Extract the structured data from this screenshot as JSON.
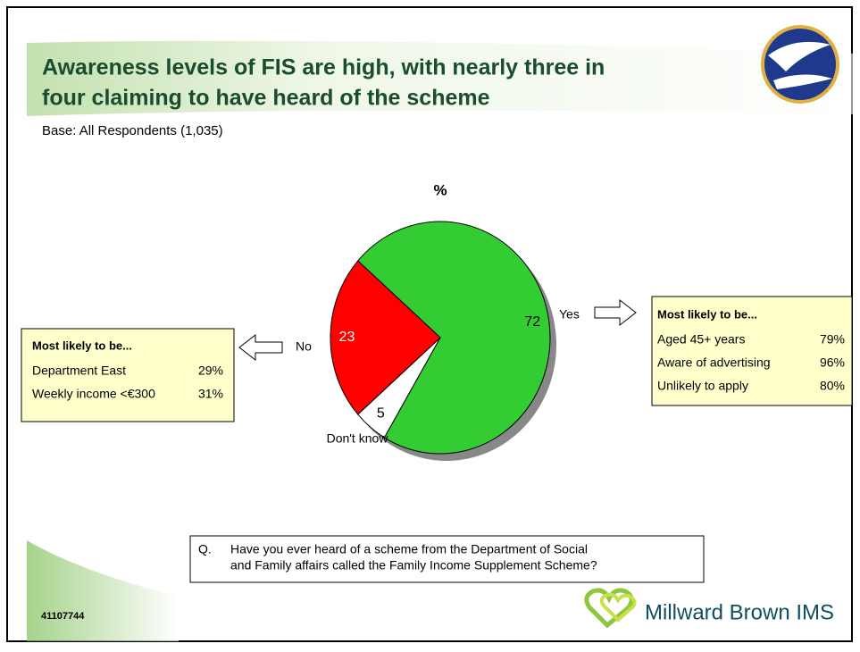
{
  "header": {
    "title_line1": "Awareness levels of FIS are high, with nearly three in",
    "title_line2": "four claiming to have heard of the scheme",
    "base": "Base: All Respondents (1,035)"
  },
  "chart_data": {
    "type": "pie",
    "title": "%",
    "categories": [
      "Yes",
      "Don't know",
      "No"
    ],
    "values": [
      72,
      5,
      23
    ],
    "colors": [
      "#33cc33",
      "#ffffff",
      "#ff0000"
    ]
  },
  "callout_left": {
    "heading": "Most likely to be...",
    "rows": [
      [
        "Department East",
        "29%"
      ],
      [
        "Weekly income <€300",
        "31%"
      ]
    ]
  },
  "callout_right": {
    "heading": "Most likely to be...",
    "rows": [
      [
        "Aged 45+ years",
        "79%"
      ],
      [
        "Aware of advertising",
        "96%"
      ],
      [
        "Unlikely to apply",
        "80%"
      ]
    ]
  },
  "question": {
    "label": "Q.",
    "line1": "Have you ever heard of a scheme from the Department of Social",
    "line2": "and Family affairs called the Family Income Supplement Scheme?"
  },
  "footer": {
    "code": "41107744",
    "brand": "Millward Brown IMS"
  }
}
